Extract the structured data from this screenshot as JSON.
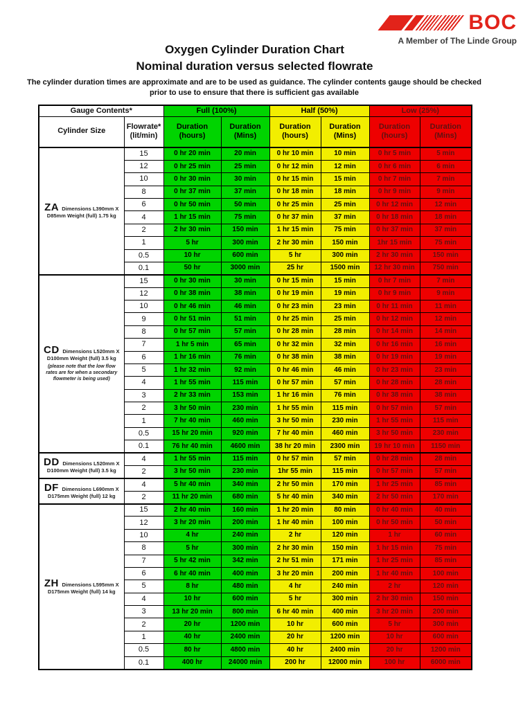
{
  "page": {
    "title_line1": "Oxygen Cylinder Duration Chart",
    "title_line2": "Nominal duration versus selected flowrate",
    "note": "The cylinder duration times are approximate and are to be used as guidance.  The cylinder contents gauge should be checked prior to use to ensure that there is sufficient gas available"
  },
  "logo": {
    "brand": "BOC",
    "tagline": "A Member of The Linde Group",
    "brand_color": "#e2231a"
  },
  "colors": {
    "full_green": "#00d400",
    "half_yellow": "#f2ee00",
    "low_red": "#ee0000",
    "red_cell_text": "#5f1111"
  },
  "table": {
    "gauge_header": "Gauge Contents*",
    "condition_headers": [
      {
        "label": "Full (100%)",
        "color": "#00d400"
      },
      {
        "label": "Half (50%)",
        "color": "#f2ee00"
      },
      {
        "label": "Low (25%)",
        "color": "#ee0000"
      }
    ],
    "column_headers": {
      "cylinder_size": "Cylinder Size",
      "flowrate_line1": "Flowrate*",
      "flowrate_line2": "(lit/min)",
      "duration_hours_line1": "Duration",
      "duration_hours_line2": "(hours)",
      "duration_mins_line1": "Duration",
      "duration_mins_line2": "(Mins)"
    },
    "groups": [
      {
        "code": "ZA",
        "desc1": "Dimensions L390mm X",
        "desc2": "D85mm Weight (full) 1.75 kg",
        "note": "",
        "rows": [
          [
            "15",
            "0 hr 20 min",
            "20 min",
            "0 hr 10 min",
            "10 min",
            "0 hr 5 min",
            "5 min"
          ],
          [
            "12",
            "0 hr 25 min",
            "25 min",
            "0 hr 12 min",
            "12 min",
            "0 hr 6 min",
            "6 min"
          ],
          [
            "10",
            "0 hr 30 min",
            "30 min",
            "0 hr 15 min",
            "15 min",
            "0 hr 7 min",
            "7 min"
          ],
          [
            "8",
            "0 hr 37 min",
            "37 min",
            "0 hr 18 min",
            "18 min",
            "0 hr 9 min",
            "9 min"
          ],
          [
            "6",
            "0 hr 50 min",
            "50 min",
            "0 hr 25 min",
            "25 min",
            "0 hr 12 min",
            "12 min"
          ],
          [
            "4",
            "1 hr 15 min",
            "75 min",
            "0 hr 37 min",
            "37 min",
            "0 hr 18 min",
            "18 min"
          ],
          [
            "2",
            "2 hr 30 min",
            "150 min",
            "1 hr 15 min",
            "75 min",
            "0 hr 37 min",
            "37 min"
          ],
          [
            "1",
            "5 hr",
            "300 min",
            "2 hr 30 min",
            "150 min",
            "1hr 15 min",
            "75 min"
          ],
          [
            "0.5",
            "10 hr",
            "600 min",
            "5 hr",
            "300 min",
            "2 hr 30 min",
            "150 min"
          ],
          [
            "0.1",
            "50 hr",
            "3000 min",
            "25 hr",
            "1500 min",
            "12 hr 30 min",
            "750 min"
          ]
        ]
      },
      {
        "code": "CD",
        "desc1": "Dimensions L520mm X",
        "desc2": "D100mm Weight (full) 3.5 kg",
        "note": "(please note that the low flow rates are for when a secondary flowmeter is being used)",
        "rows": [
          [
            "15",
            "0 hr 30 min",
            "30 min",
            "0 hr 15 min",
            "15 min",
            "0 hr 7 min",
            "7 min"
          ],
          [
            "12",
            "0 hr 38 min",
            "38 min",
            "0 hr 19 min",
            "19 min",
            "0 hr 9 min",
            "9 min"
          ],
          [
            "10",
            "0 hr 46 min",
            "46 min",
            "0 hr 23 min",
            "23 min",
            "0 hr 11 min",
            "11 min"
          ],
          [
            "9",
            "0 hr 51 min",
            "51 min",
            "0 hr 25 min",
            "25 min",
            "0 hr 12 min",
            "12 min"
          ],
          [
            "8",
            "0 hr 57 min",
            "57 min",
            "0 hr 28 min",
            "28 min",
            "0 hr 14 min",
            "14 min"
          ],
          [
            "7",
            "1 hr 5 min",
            "65 min",
            "0 hr 32 min",
            "32 min",
            "0 hr 16 min",
            "16 min"
          ],
          [
            "6",
            "1 hr 16 min",
            "76 min",
            "0 hr 38 min",
            "38 min",
            "0 hr 19 min",
            "19 min"
          ],
          [
            "5",
            "1 hr 32 min",
            "92 min",
            "0 hr 46 min",
            "46 min",
            "0 hr 23 min",
            "23 min"
          ],
          [
            "4",
            "1 hr 55 min",
            "115 min",
            "0 hr 57 min",
            "57 min",
            "0 hr 28 min",
            "28 min"
          ],
          [
            "3",
            "2 hr 33 min",
            "153 min",
            "1 hr 16 min",
            "76 min",
            "0 hr 38 min",
            "38 min"
          ],
          [
            "2",
            "3 hr 50 min",
            "230 min",
            "1 hr 55 min",
            "115 min",
            "0 hr 57 min",
            "57 min"
          ],
          [
            "1",
            "7 hr 40 min",
            "460 min",
            "3 hr 50 min",
            "230 min",
            "1 hr 55 min",
            "115 min"
          ],
          [
            "0.5",
            "15 hr 20 min",
            "920 min",
            "7 hr 40 min",
            "460 min",
            "3 hr 50 min",
            "230 min"
          ],
          [
            "0.1",
            "76 hr 40 min",
            "4600 min",
            "38 hr 20 min",
            "2300 min",
            "19 hr 10 min",
            "1150 min"
          ]
        ]
      },
      {
        "code": "DD",
        "desc1": "Dimensions L520mm X",
        "desc2": "D100mm Weight (full) 3.5 kg",
        "note": "",
        "rows": [
          [
            "4",
            "1 hr 55 min",
            "115 min",
            "0 hr 57 min",
            "57 min",
            "0 hr 28 min",
            "28 min"
          ],
          [
            "2",
            "3 hr 50 min",
            "230 min",
            "1hr 55 min",
            "115 min",
            "0 hr 57 min",
            "57 min"
          ]
        ]
      },
      {
        "code": "DF",
        "desc1": "Dimensions L690mm X",
        "desc2": "D175mm Weight (full) 12 kg",
        "note": "",
        "rows": [
          [
            "4",
            "5 hr 40 min",
            "340 min",
            "2 hr 50 min",
            "170 min",
            "1 hr 25 min",
            "85 min"
          ],
          [
            "2",
            "11 hr 20 min",
            "680 min",
            "5 hr 40 min",
            "340 min",
            "2 hr 50 min",
            "170 min"
          ]
        ]
      },
      {
        "code": "ZH",
        "desc1": "Dimensions L595mm X",
        "desc2": "D175mm Weight (full) 14 kg",
        "note": "",
        "rows": [
          [
            "15",
            "2 hr 40 min",
            "160 min",
            "1 hr 20 min",
            "80 min",
            "0 hr 40 min",
            "40 min"
          ],
          [
            "12",
            "3 hr 20 min",
            "200 min",
            "1 hr 40 min",
            "100 min",
            "0 hr 50 min",
            "50 min"
          ],
          [
            "10",
            "4 hr",
            "240 min",
            "2 hr",
            "120 min",
            "1 hr",
            "60 min"
          ],
          [
            "8",
            "5 hr",
            "300 min",
            "2 hr 30 min",
            "150 min",
            "1 hr 15 min",
            "75 min"
          ],
          [
            "7",
            "5 hr 42 min",
            "342 min",
            "2 hr 51 min",
            "171 min",
            "1 hr 25 min",
            "85 min"
          ],
          [
            "6",
            "6 hr 40 min",
            "400 min",
            "3 hr 20 min",
            "200 min",
            "1 hr 40 min",
            "100 min"
          ],
          [
            "5",
            "8 hr",
            "480 min",
            "4 hr",
            "240 min",
            "2 hr",
            "120 min"
          ],
          [
            "4",
            "10 hr",
            "600 min",
            "5 hr",
            "300 min",
            "2 hr 30 min",
            "150 min"
          ],
          [
            "3",
            "13 hr 20 min",
            "800 min",
            "6 hr 40 min",
            "400 min",
            "3 hr 20 min",
            "200 min"
          ],
          [
            "2",
            "20 hr",
            "1200 min",
            "10 hr",
            "600 min",
            "5 hr",
            "300 min"
          ],
          [
            "1",
            "40 hr",
            "2400 min",
            "20 hr",
            "1200 min",
            "10 hr",
            "600 min"
          ],
          [
            "0.5",
            "80 hr",
            "4800 min",
            "40 hr",
            "2400 min",
            "20 hr",
            "1200 min"
          ],
          [
            "0.1",
            "400 hr",
            "24000 min",
            "200 hr",
            "12000 min",
            "100 hr",
            "6000 min"
          ]
        ]
      }
    ]
  }
}
